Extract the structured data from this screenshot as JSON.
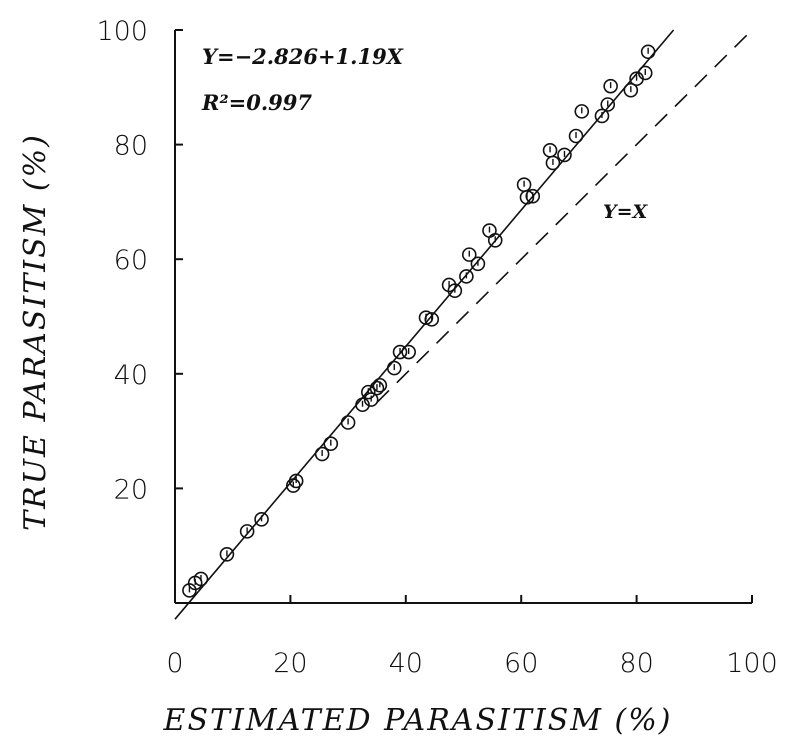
{
  "chart_data": {
    "type": "scatter",
    "title": "",
    "xlabel": "ESTIMATED PARASITISM (%)",
    "ylabel": "TRUE PARASITISM (%)",
    "xlim": [
      0,
      100
    ],
    "ylim": [
      0,
      100
    ],
    "x_ticks": [
      "0",
      "20",
      "40",
      "60",
      "80",
      "100"
    ],
    "y_ticks": [
      "20",
      "40",
      "60",
      "80",
      "100"
    ],
    "grid": false,
    "legend": "none",
    "annotations": {
      "equation": "Y=−2.826+1.19X",
      "r_squared": "R²=0.997",
      "identity_label": "Y=X"
    },
    "regression": {
      "intercept": -2.826,
      "slope": 1.19
    },
    "reference_line": {
      "label": "Y=X",
      "style": "dashed"
    },
    "points": [
      [
        2.5,
        2.2
      ],
      [
        3.5,
        3.5
      ],
      [
        4.5,
        4.2
      ],
      [
        9,
        8.5
      ],
      [
        12.5,
        12.5
      ],
      [
        15,
        14.6
      ],
      [
        20.5,
        20.5
      ],
      [
        21,
        21.3
      ],
      [
        25.5,
        26
      ],
      [
        27,
        27.8
      ],
      [
        30,
        31.5
      ],
      [
        32.5,
        34.6
      ],
      [
        33.5,
        36.8
      ],
      [
        34,
        35.5
      ],
      [
        35,
        37.5
      ],
      [
        35.5,
        38
      ],
      [
        38,
        41
      ],
      [
        39,
        43.8
      ],
      [
        40.5,
        43.8
      ],
      [
        43.5,
        49.8
      ],
      [
        44.5,
        49.5
      ],
      [
        47.5,
        55.5
      ],
      [
        48.5,
        54.5
      ],
      [
        50.5,
        57
      ],
      [
        51,
        60.8
      ],
      [
        52.5,
        59.2
      ],
      [
        54.5,
        65
      ],
      [
        55.5,
        63.3
      ],
      [
        60.5,
        73
      ],
      [
        61,
        70.8
      ],
      [
        62,
        71
      ],
      [
        65,
        79
      ],
      [
        65.5,
        76.8
      ],
      [
        67.5,
        78.2
      ],
      [
        69.5,
        81.5
      ],
      [
        70.5,
        85.8
      ],
      [
        74,
        85
      ],
      [
        75,
        87
      ],
      [
        75.5,
        90.2
      ],
      [
        79,
        89.5
      ],
      [
        80,
        91.5
      ],
      [
        81.5,
        92.5
      ],
      [
        82,
        96.2
      ]
    ]
  }
}
